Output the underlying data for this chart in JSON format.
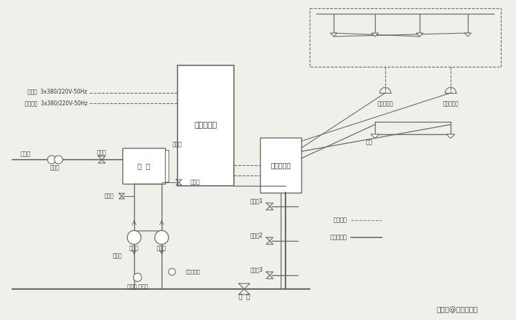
{
  "bg_color": "#f0f0eb",
  "line_color": "#666666",
  "text_color": "#333333",
  "power_line1": "主电源  3x380/220V-50Hz",
  "power_line2": "备用电源  3x380/220V-50Hz",
  "pump_cabinet_label": "泵组控制柜",
  "alarm_controller_label": "报警控制器",
  "water_tank_label": "水  箱",
  "inlet_label": "进水管",
  "filter_label": "过滤器",
  "solenoid_label": "电磁阀",
  "level_gauge_label": "液位计",
  "drain_valve_label": "排水阀",
  "test_valve_label": "测试阀",
  "high_press_pump_label": "高压泵",
  "boost_pump_label": "稳压泵",
  "gate_valve_label": "止回阀",
  "pressure_switch_label": "压力传感器",
  "pressure_relief_label": "减压阀 压力表",
  "main_valve_label": "主  阀",
  "zone_valve1_label": "区域阀1",
  "zone_valve2_label": "区域阀2",
  "zone_valve3_label": "区域阀3",
  "temp_detector_label": "感温探测器",
  "smoke_detector_label": "感烟探测器",
  "nozzle_label": "喷头",
  "elec_signal_label": "电信号线",
  "water_pipe_label": "水系统管路",
  "watermark": "搜狐号@斯库尔消防"
}
